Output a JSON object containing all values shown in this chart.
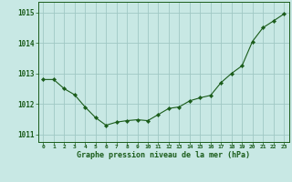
{
  "x": [
    0,
    1,
    2,
    3,
    4,
    5,
    6,
    7,
    8,
    9,
    10,
    11,
    12,
    13,
    14,
    15,
    16,
    17,
    18,
    19,
    20,
    21,
    22,
    23
  ],
  "y": [
    1012.8,
    1012.8,
    1012.5,
    1012.3,
    1011.9,
    1011.55,
    1011.3,
    1011.4,
    1011.45,
    1011.48,
    1011.45,
    1011.65,
    1011.85,
    1011.9,
    1012.1,
    1012.2,
    1012.28,
    1012.7,
    1013.0,
    1013.25,
    1014.05,
    1014.5,
    1014.72,
    1014.95
  ],
  "line_color": "#1a5c1a",
  "marker": "D",
  "marker_size": 2.2,
  "bg_color": "#c8e8e4",
  "grid_color": "#a0c8c4",
  "xlabel": "Graphe pression niveau de la mer (hPa)",
  "xlabel_color": "#1a5c1a",
  "tick_color": "#1a5c1a",
  "ylim": [
    1010.75,
    1015.35
  ],
  "yticks": [
    1011,
    1012,
    1013,
    1014,
    1015
  ],
  "xlim": [
    -0.5,
    23.5
  ],
  "xticks": [
    0,
    1,
    2,
    3,
    4,
    5,
    6,
    7,
    8,
    9,
    10,
    11,
    12,
    13,
    14,
    15,
    16,
    17,
    18,
    19,
    20,
    21,
    22,
    23
  ]
}
